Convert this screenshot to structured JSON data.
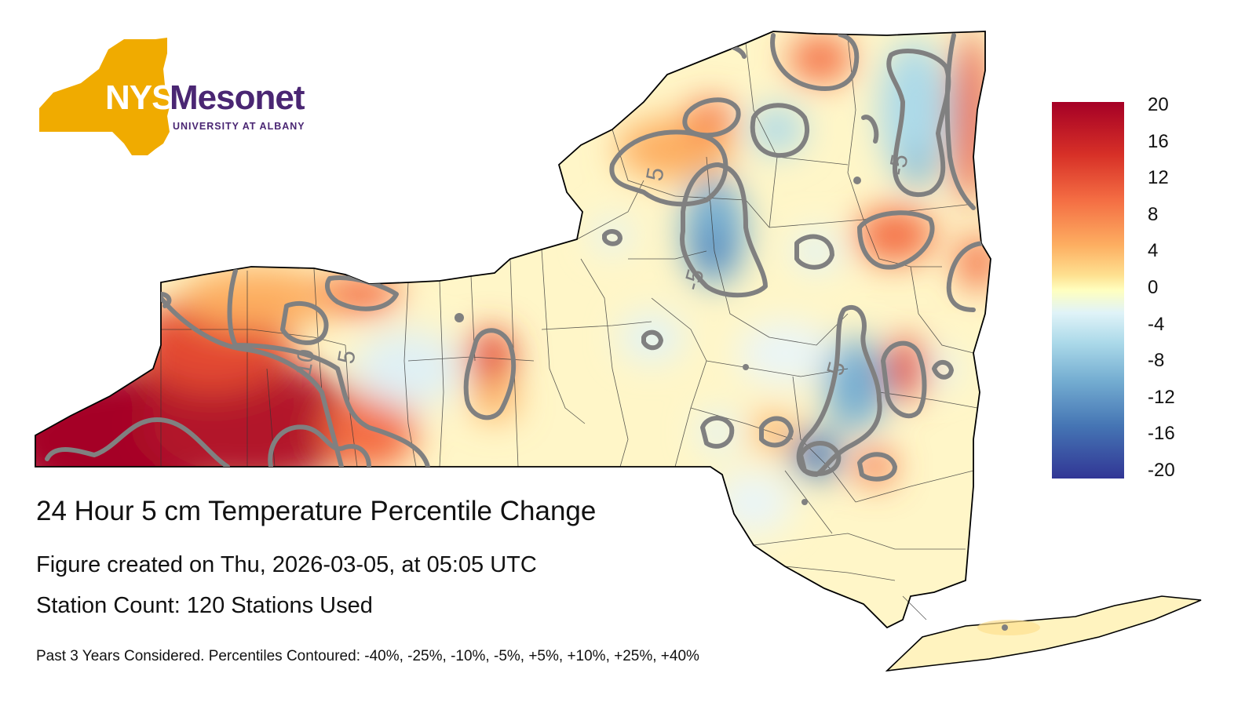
{
  "logo": {
    "nys": "NYS",
    "mesonet": "Mesonet",
    "university": "UNIVERSITY AT ALBANY",
    "gold": "#f0ab00",
    "purple": "#4a2673"
  },
  "title": "24 Hour 5 cm Temperature Percentile Change",
  "created": "Figure created on Thu, 2026-03-05, at 05:05 UTC",
  "station_count": "Station Count: 120 Stations Used",
  "footnote": "Past 3 Years Considered. Percentiles Contoured: -40%, -25%, -10%, -5%, +5%, +10%, +25%, +40%",
  "colorbar": {
    "labels": [
      "20",
      "16",
      "12",
      "8",
      "4",
      "0",
      "-4",
      "-8",
      "-12",
      "-16",
      "-20"
    ],
    "max": 20,
    "min": -20,
    "colors": [
      "#a50026",
      "#f46d43",
      "#fee090",
      "#ffffbf",
      "#abd9e9",
      "#4575b4",
      "#313695"
    ]
  },
  "contour_labels": [
    {
      "text": "5"
    },
    {
      "text": "-5"
    },
    {
      "text": "-5"
    },
    {
      "text": "10"
    },
    {
      "text": "5"
    },
    {
      "text": "-5"
    }
  ]
}
